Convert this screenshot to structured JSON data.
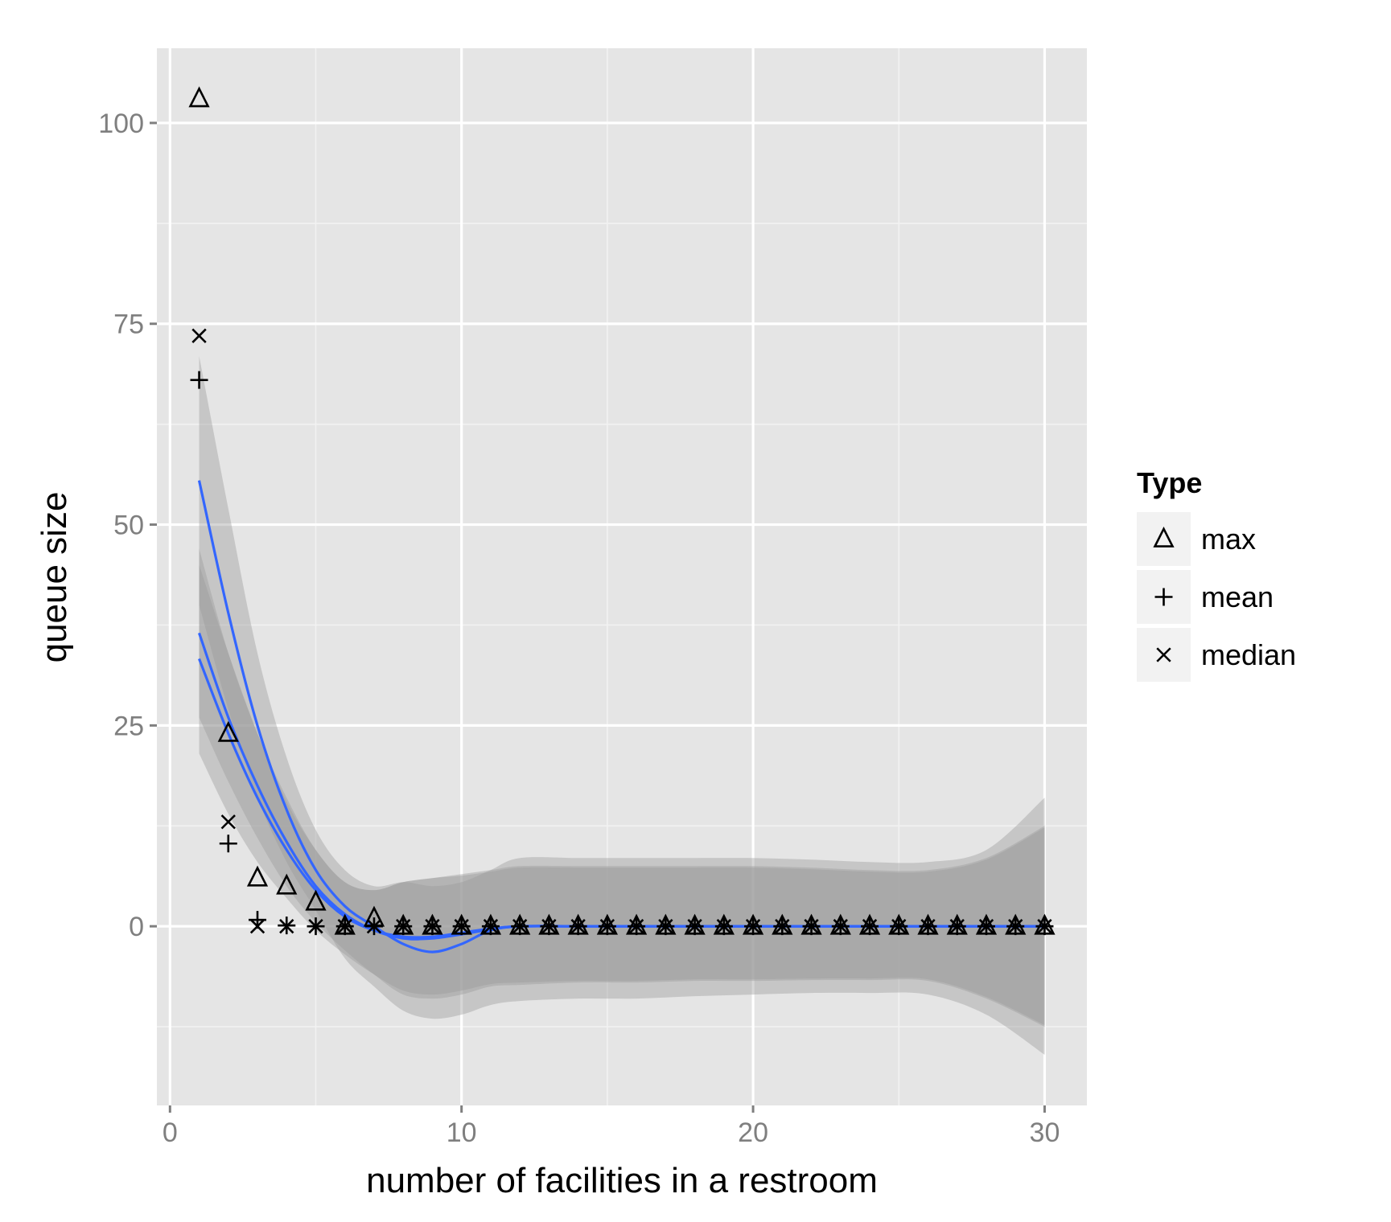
{
  "chart_data": {
    "type": "scatter",
    "xlabel": "number of facilities in a restroom",
    "ylabel": "queue size",
    "xlim": [
      -0.45,
      31.45
    ],
    "ylim": [
      -22.3,
      109.3
    ],
    "x_ticks": [
      0,
      10,
      20,
      30
    ],
    "y_ticks": [
      0,
      25,
      50,
      75,
      100
    ],
    "x_tick_labels": [
      "0",
      "10",
      "20",
      "30"
    ],
    "y_tick_labels": [
      "0",
      "25",
      "50",
      "75",
      "100"
    ],
    "grid": true,
    "legend": {
      "title": "Type",
      "position": "right",
      "entries": [
        "max",
        "mean",
        "median"
      ]
    },
    "colors": {
      "panel": "#e5e5e5",
      "grid": "#ffffff",
      "smooth_line": "#3366ff",
      "ribbon": "#999999",
      "point": "#000000",
      "legend_key": "#f2f2f2"
    },
    "series": [
      {
        "name": "max",
        "shape": "triangle",
        "x": [
          1,
          2,
          3,
          4,
          5,
          6,
          7,
          8,
          9,
          10,
          11,
          12,
          13,
          14,
          15,
          16,
          17,
          18,
          19,
          20,
          21,
          22,
          23,
          24,
          25,
          26,
          27,
          28,
          29,
          30
        ],
        "y": [
          103,
          24,
          6,
          5,
          3,
          0,
          1,
          0,
          0,
          0,
          0,
          0,
          0,
          0,
          0,
          0,
          0,
          0,
          0,
          0,
          0,
          0,
          0,
          0,
          0,
          0,
          0,
          0,
          0,
          0
        ]
      },
      {
        "name": "mean",
        "shape": "plus",
        "x": [
          1,
          2,
          3,
          4,
          5,
          6,
          7,
          8,
          9,
          10,
          11,
          12,
          13,
          14,
          15,
          16,
          17,
          18,
          19,
          20,
          21,
          22,
          23,
          24,
          25,
          26,
          27,
          28,
          29,
          30
        ],
        "y": [
          68,
          10.3,
          0.8,
          0.1,
          0,
          0,
          0,
          0,
          0,
          0,
          0,
          0,
          0,
          0,
          0,
          0,
          0,
          0,
          0,
          0,
          0,
          0,
          0,
          0,
          0,
          0,
          0,
          0,
          0,
          0
        ]
      },
      {
        "name": "median",
        "shape": "cross",
        "x": [
          1,
          2,
          3,
          4,
          5,
          6,
          7,
          8,
          9,
          10,
          11,
          12,
          13,
          14,
          15,
          16,
          17,
          18,
          19,
          20,
          21,
          22,
          23,
          24,
          25,
          26,
          27,
          28,
          29,
          30
        ],
        "y": [
          73.5,
          13,
          0,
          0,
          0,
          0,
          0,
          0,
          0,
          0,
          0,
          0,
          0,
          0,
          0,
          0,
          0,
          0,
          0,
          0,
          0,
          0,
          0,
          0,
          0,
          0,
          0,
          0,
          0,
          0
        ]
      }
    ],
    "smooth": [
      {
        "name": "max",
        "x": [
          1,
          2,
          3,
          4,
          5,
          6,
          7,
          8,
          9,
          10,
          11,
          12,
          14,
          16,
          18,
          20,
          22,
          24,
          26,
          28,
          30
        ],
        "fit": [
          55.5,
          39,
          25,
          14.5,
          7,
          2.5,
          0,
          -2.2,
          -3.2,
          -2.2,
          -0.5,
          0,
          0,
          0,
          0,
          0,
          0,
          0,
          0,
          0,
          0
        ],
        "lower": [
          40,
          27,
          16,
          8,
          2,
          -4,
          -7.5,
          -10.5,
          -11.5,
          -11,
          -9.8,
          -9.3,
          -9,
          -9,
          -8.7,
          -8.5,
          -8.3,
          -8.3,
          -8.5,
          -11,
          -16
        ],
        "upper": [
          71,
          52,
          34,
          21,
          12,
          7,
          5,
          5.5,
          5,
          5.5,
          7,
          8.5,
          8.5,
          8.5,
          8.5,
          8.5,
          8.3,
          8,
          8,
          9.5,
          16
        ]
      },
      {
        "name": "mean",
        "x": [
          1,
          2,
          3,
          4,
          5,
          6,
          7,
          8,
          9,
          10,
          11,
          12,
          14,
          16,
          18,
          20,
          22,
          24,
          26,
          28,
          30
        ],
        "fit": [
          36.5,
          26,
          17.5,
          10.5,
          5,
          1.5,
          -0.5,
          -1.5,
          -1.5,
          -1,
          -0.4,
          0,
          0,
          0,
          0,
          0,
          0,
          0,
          0,
          0,
          0
        ],
        "lower": [
          26,
          18,
          11,
          5,
          0.5,
          -3,
          -6,
          -8.5,
          -9,
          -8.5,
          -7.5,
          -7.3,
          -7,
          -7,
          -6.8,
          -6.8,
          -6.7,
          -6.7,
          -6.8,
          -9,
          -12.5
        ],
        "upper": [
          47,
          34,
          24,
          16,
          9.5,
          5.5,
          4.5,
          5.5,
          6,
          6.5,
          7,
          7.5,
          7.5,
          7.5,
          7.5,
          7.5,
          7.3,
          7,
          7,
          8.5,
          12.5
        ]
      },
      {
        "name": "median",
        "x": [
          1,
          2,
          3,
          4,
          5,
          6,
          7,
          8,
          9,
          10,
          11,
          12,
          14,
          16,
          18,
          20,
          22,
          24,
          26,
          28,
          30
        ],
        "fit": [
          33.3,
          24,
          16,
          9.5,
          4.5,
          1.2,
          -0.5,
          -1.3,
          -1.3,
          -0.8,
          -0.3,
          0,
          0,
          0,
          0,
          0,
          0,
          0,
          0,
          0,
          0
        ],
        "lower": [
          21.5,
          14,
          8,
          3.5,
          -0.5,
          -3.5,
          -6,
          -8,
          -8.5,
          -8,
          -7.2,
          -7,
          -6.8,
          -6.8,
          -6.6,
          -6.6,
          -6.5,
          -6.5,
          -6.6,
          -8.8,
          -12.3
        ],
        "upper": [
          45,
          34,
          24,
          15.5,
          9.5,
          5.5,
          4.5,
          5.5,
          6,
          6.3,
          6.8,
          7.3,
          7.3,
          7.3,
          7.3,
          7.3,
          7.1,
          6.8,
          6.8,
          8.3,
          12.3
        ]
      }
    ]
  }
}
